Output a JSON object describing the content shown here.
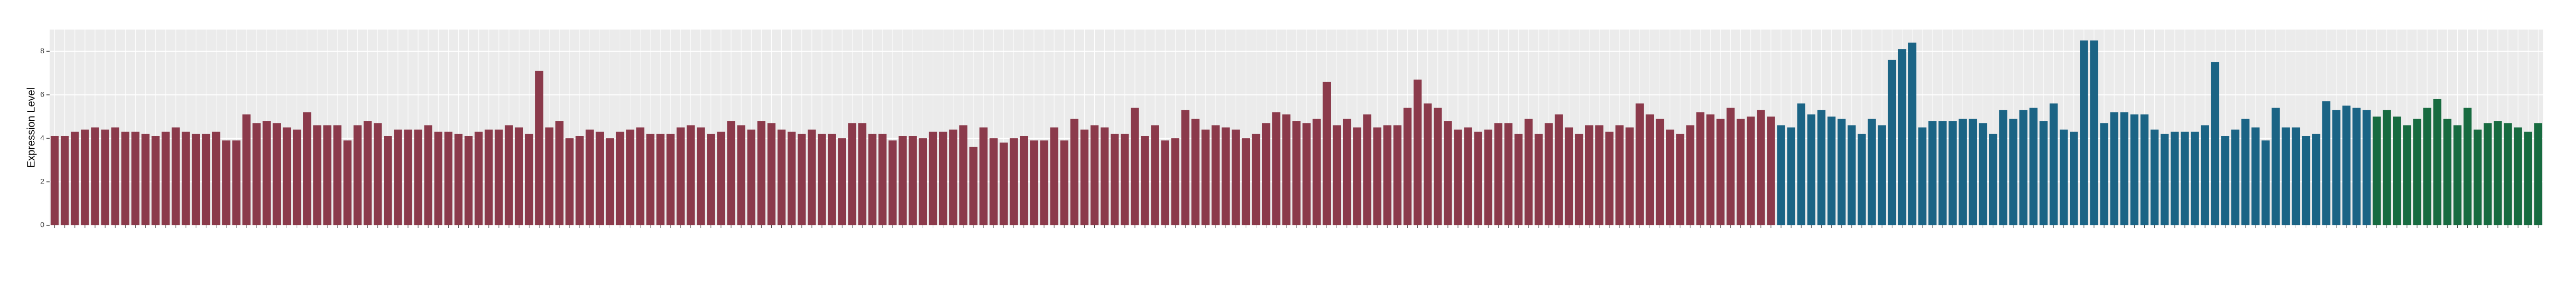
{
  "chart_data": {
    "type": "bar",
    "y_label": "Expression Level",
    "ylim": [
      0,
      9.0
    ],
    "yticks": [
      0,
      2,
      4,
      6,
      8
    ],
    "grid": true,
    "categories": [
      null,
      null,
      null,
      null,
      null,
      null,
      null,
      null,
      null,
      null,
      null,
      null,
      null,
      null,
      null,
      null,
      null,
      null,
      null,
      null,
      null,
      null,
      null,
      null,
      null,
      null,
      null,
      null,
      null,
      null,
      null,
      null,
      null,
      null,
      null,
      null,
      null,
      null,
      null,
      null,
      null,
      null,
      null,
      null,
      null,
      null,
      null,
      null,
      null,
      null,
      null,
      null,
      null,
      null,
      null,
      null,
      null,
      null,
      null,
      null,
      null,
      null,
      null,
      null,
      null,
      null,
      null,
      null,
      null,
      null,
      null,
      null,
      null,
      null,
      null,
      null,
      null,
      null,
      null,
      null,
      null,
      null,
      null,
      null,
      null,
      null,
      null,
      null,
      null,
      null,
      null,
      null,
      null,
      null,
      null,
      null,
      null,
      null,
      null,
      null,
      null,
      null,
      null,
      null,
      null,
      null,
      null,
      null,
      null,
      null,
      null,
      null,
      null,
      null,
      null,
      null,
      null,
      null,
      null,
      null,
      null,
      null,
      null,
      null,
      null,
      null,
      null,
      null,
      null,
      null,
      null,
      null,
      null,
      null,
      null,
      null,
      null,
      null,
      null,
      null,
      null,
      null,
      null,
      null,
      null,
      null,
      null,
      null,
      null,
      null,
      null,
      null,
      null,
      null,
      null,
      null,
      null,
      null,
      null,
      null,
      null,
      null,
      null,
      null,
      null,
      null,
      null,
      null,
      null,
      null,
      null,
      null,
      null,
      null,
      null,
      null,
      null,
      null,
      null,
      null,
      null,
      null,
      null,
      null,
      null,
      null,
      null,
      null,
      null,
      null,
      null,
      null,
      null,
      null,
      null,
      null,
      null,
      null,
      null,
      null,
      null,
      null,
      null,
      null,
      null,
      null,
      null,
      null,
      null,
      null,
      null,
      null,
      null,
      null,
      null,
      null,
      null,
      null,
      null,
      null,
      null,
      null,
      null,
      null,
      null,
      null,
      null,
      null,
      null,
      null,
      null,
      null,
      null,
      null,
      null,
      null,
      null,
      null,
      null,
      null,
      null,
      null,
      null,
      null,
      null,
      null,
      null
    ],
    "values": [
      4.1,
      4.1,
      4.3,
      4.4,
      4.5,
      4.4,
      4.5,
      4.3,
      4.3,
      4.2,
      4.1,
      4.3,
      4.5,
      4.3,
      4.2,
      4.2,
      4.3,
      3.9,
      3.9,
      5.1,
      4.7,
      4.8,
      4.7,
      4.5,
      4.4,
      5.2,
      4.6,
      4.6,
      4.6,
      3.9,
      4.6,
      4.8,
      4.7,
      4.1,
      4.4,
      4.4,
      4.4,
      4.6,
      4.3,
      4.3,
      4.2,
      4.1,
      4.3,
      4.4,
      4.4,
      4.6,
      4.5,
      4.2,
      7.1,
      4.5,
      4.8,
      4.0,
      4.1,
      4.4,
      4.3,
      4.0,
      4.3,
      4.4,
      4.5,
      4.2,
      4.2,
      4.2,
      4.5,
      4.6,
      4.5,
      4.2,
      4.3,
      4.8,
      4.6,
      4.4,
      4.8,
      4.7,
      4.4,
      4.3,
      4.2,
      4.4,
      4.2,
      4.2,
      4.0,
      4.7,
      4.7,
      4.2,
      4.2,
      3.9,
      4.1,
      4.1,
      4.0,
      4.3,
      4.3,
      4.4,
      4.6,
      3.6,
      4.5,
      4.0,
      3.8,
      4.0,
      4.1,
      3.9,
      3.9,
      4.5,
      3.9,
      4.9,
      4.4,
      4.6,
      4.5,
      4.2,
      4.2,
      5.4,
      4.1,
      4.6,
      3.9,
      4.0,
      5.3,
      4.9,
      4.4,
      4.6,
      4.5,
      4.4,
      4.0,
      4.2,
      4.7,
      5.2,
      5.1,
      4.8,
      4.7,
      4.9,
      6.6,
      4.6,
      4.9,
      4.5,
      5.1,
      4.5,
      4.6,
      4.6,
      5.4,
      6.7,
      5.6,
      5.4,
      4.8,
      4.4,
      4.5,
      4.3,
      4.4,
      4.7,
      4.7,
      4.2,
      4.9,
      4.2,
      4.7,
      5.1,
      4.5,
      4.2,
      4.6,
      4.6,
      4.3,
      4.6,
      4.5,
      5.6,
      5.1,
      4.9,
      4.4,
      4.2,
      4.6,
      5.2,
      5.1,
      4.9,
      5.4,
      4.9,
      5.0,
      5.3,
      5.0,
      4.6,
      4.5,
      5.6,
      5.1,
      5.3,
      5.0,
      4.9,
      4.6,
      4.2,
      4.9,
      4.6,
      7.6,
      8.1,
      8.4,
      4.5,
      4.8,
      4.8,
      4.8,
      4.9,
      4.9,
      4.7,
      4.2,
      5.3,
      4.9,
      5.3,
      5.4,
      4.8,
      5.6,
      4.4,
      4.3,
      8.5,
      8.5,
      4.7,
      5.2,
      5.2,
      5.1,
      5.1,
      4.4,
      4.2,
      4.3,
      4.3,
      4.3,
      4.6,
      7.5,
      4.1,
      4.4,
      4.9,
      4.5,
      3.9,
      5.4,
      4.5,
      4.5,
      4.1,
      4.2,
      5.7,
      5.3,
      5.5,
      5.4,
      5.3,
      5.0,
      5.3,
      5.0,
      4.6,
      4.9,
      5.4,
      5.8,
      4.9,
      4.6,
      5.4,
      4.4,
      4.7,
      4.8,
      4.7,
      4.5,
      4.3,
      4.7
    ],
    "colors": [
      "#8b3a4b",
      "#8b3a4b",
      "#8b3a4b",
      "#8b3a4b",
      "#8b3a4b",
      "#8b3a4b",
      "#8b3a4b",
      "#8b3a4b",
      "#8b3a4b",
      "#8b3a4b",
      "#8b3a4b",
      "#8b3a4b",
      "#8b3a4b",
      "#8b3a4b",
      "#8b3a4b",
      "#8b3a4b",
      "#8b3a4b",
      "#8b3a4b",
      "#8b3a4b",
      "#8b3a4b",
      "#8b3a4b",
      "#8b3a4b",
      "#8b3a4b",
      "#8b3a4b",
      "#8b3a4b",
      "#8b3a4b",
      "#8b3a4b",
      "#8b3a4b",
      "#8b3a4b",
      "#8b3a4b",
      "#8b3a4b",
      "#8b3a4b",
      "#8b3a4b",
      "#8b3a4b",
      "#8b3a4b",
      "#8b3a4b",
      "#8b3a4b",
      "#8b3a4b",
      "#8b3a4b",
      "#8b3a4b",
      "#8b3a4b",
      "#8b3a4b",
      "#8b3a4b",
      "#8b3a4b",
      "#8b3a4b",
      "#8b3a4b",
      "#8b3a4b",
      "#8b3a4b",
      "#8b3a4b",
      "#8b3a4b",
      "#8b3a4b",
      "#8b3a4b",
      "#8b3a4b",
      "#8b3a4b",
      "#8b3a4b",
      "#8b3a4b",
      "#8b3a4b",
      "#8b3a4b",
      "#8b3a4b",
      "#8b3a4b",
      "#8b3a4b",
      "#8b3a4b",
      "#8b3a4b",
      "#8b3a4b",
      "#8b3a4b",
      "#8b3a4b",
      "#8b3a4b",
      "#8b3a4b",
      "#8b3a4b",
      "#8b3a4b",
      "#8b3a4b",
      "#8b3a4b",
      "#8b3a4b",
      "#8b3a4b",
      "#8b3a4b",
      "#8b3a4b",
      "#8b3a4b",
      "#8b3a4b",
      "#8b3a4b",
      "#8b3a4b",
      "#8b3a4b",
      "#8b3a4b",
      "#8b3a4b",
      "#8b3a4b",
      "#8b3a4b",
      "#8b3a4b",
      "#8b3a4b",
      "#8b3a4b",
      "#8b3a4b",
      "#8b3a4b",
      "#8b3a4b",
      "#8b3a4b",
      "#8b3a4b",
      "#8b3a4b",
      "#8b3a4b",
      "#8b3a4b",
      "#8b3a4b",
      "#8b3a4b",
      "#8b3a4b",
      "#8b3a4b",
      "#8b3a4b",
      "#8b3a4b",
      "#8b3a4b",
      "#8b3a4b",
      "#8b3a4b",
      "#8b3a4b",
      "#8b3a4b",
      "#8b3a4b",
      "#8b3a4b",
      "#8b3a4b",
      "#8b3a4b",
      "#8b3a4b",
      "#8b3a4b",
      "#8b3a4b",
      "#8b3a4b",
      "#8b3a4b",
      "#8b3a4b",
      "#8b3a4b",
      "#8b3a4b",
      "#8b3a4b",
      "#8b3a4b",
      "#8b3a4b",
      "#8b3a4b",
      "#8b3a4b",
      "#8b3a4b",
      "#8b3a4b",
      "#8b3a4b",
      "#8b3a4b",
      "#8b3a4b",
      "#8b3a4b",
      "#8b3a4b",
      "#8b3a4b",
      "#8b3a4b",
      "#8b3a4b",
      "#8b3a4b",
      "#8b3a4b",
      "#8b3a4b",
      "#8b3a4b",
      "#8b3a4b",
      "#8b3a4b",
      "#8b3a4b",
      "#8b3a4b",
      "#8b3a4b",
      "#8b3a4b",
      "#8b3a4b",
      "#8b3a4b",
      "#8b3a4b",
      "#8b3a4b",
      "#8b3a4b",
      "#8b3a4b",
      "#8b3a4b",
      "#8b3a4b",
      "#8b3a4b",
      "#8b3a4b",
      "#8b3a4b",
      "#8b3a4b",
      "#8b3a4b",
      "#8b3a4b",
      "#8b3a4b",
      "#8b3a4b",
      "#8b3a4b",
      "#8b3a4b",
      "#8b3a4b",
      "#8b3a4b",
      "#8b3a4b",
      "#8b3a4b",
      "#8b3a4b",
      "#8b3a4b",
      "#8b3a4b",
      "#8b3a4b",
      "#8b3a4b",
      "#1b6485",
      "#1b6485",
      "#1b6485",
      "#1b6485",
      "#1b6485",
      "#1b6485",
      "#1b6485",
      "#1b6485",
      "#1b6485",
      "#1b6485",
      "#1b6485",
      "#1b6485",
      "#1b6485",
      "#1b6485",
      "#1b6485",
      "#1b6485",
      "#1b6485",
      "#1b6485",
      "#1b6485",
      "#1b6485",
      "#1b6485",
      "#1b6485",
      "#1b6485",
      "#1b6485",
      "#1b6485",
      "#1b6485",
      "#1b6485",
      "#1b6485",
      "#1b6485",
      "#1b6485",
      "#1b6485",
      "#1b6485",
      "#1b6485",
      "#1b6485",
      "#1b6485",
      "#1b6485",
      "#1b6485",
      "#1b6485",
      "#1b6485",
      "#1b6485",
      "#1b6485",
      "#1b6485",
      "#1b6485",
      "#1b6485",
      "#1b6485",
      "#1b6485",
      "#1b6485",
      "#1b6485",
      "#1b6485",
      "#1b6485",
      "#1b6485",
      "#1b6485",
      "#1b6485",
      "#1b6485",
      "#1b6485",
      "#1b6485",
      "#1b6485",
      "#1b6485",
      "#1b6485",
      "#176b40",
      "#176b40",
      "#176b40",
      "#176b40",
      "#176b40",
      "#176b40",
      "#176b40",
      "#176b40",
      "#176b40",
      "#176b40",
      "#176b40",
      "#176b40",
      "#176b40",
      "#176b40",
      "#176b40",
      "#176b40",
      "#176b40"
    ]
  }
}
